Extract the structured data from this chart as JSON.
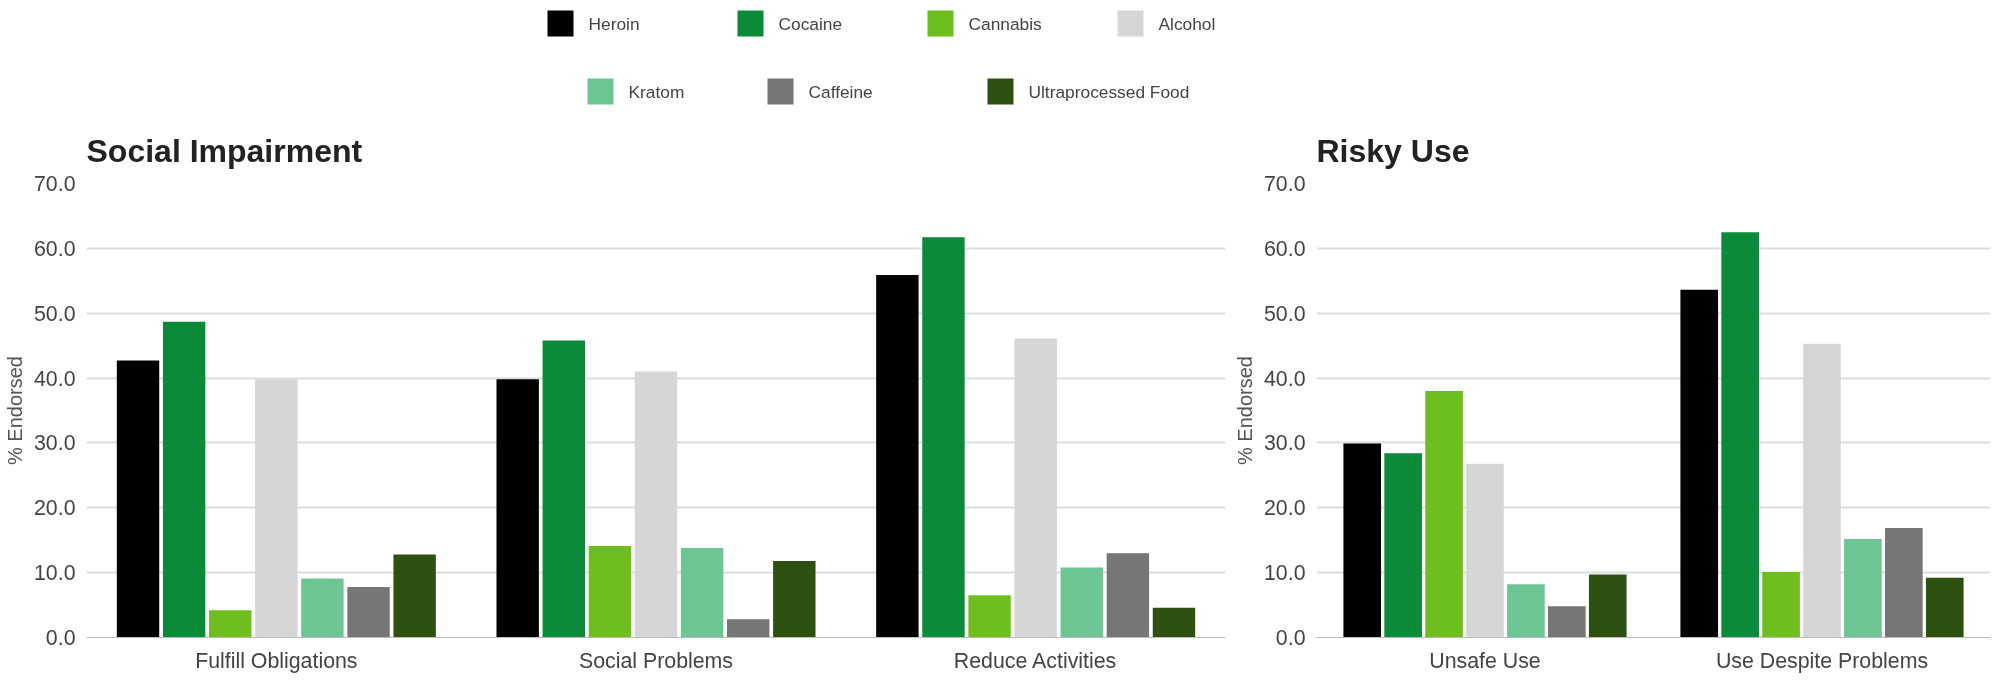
{
  "chart_data": [
    {
      "type": "bar",
      "title": "Social Impairment",
      "ylabel": "% Endorsed",
      "categories": [
        "Fulfill Obligations",
        "Social Problems",
        "Reduce Activities"
      ],
      "series": [
        {
          "name": "Heroin",
          "color": "#000000",
          "values": [
            42.7,
            39.8,
            55.9
          ]
        },
        {
          "name": "Cocaine",
          "color": "#0b8a3a",
          "values": [
            48.7,
            45.8,
            61.7
          ]
        },
        {
          "name": "Cannabis",
          "color": "#6fbe1f",
          "values": [
            4.2,
            14.1,
            6.5
          ]
        },
        {
          "name": "Alcohol",
          "color": "#d6d6d6",
          "values": [
            39.8,
            41.0,
            46.1
          ]
        },
        {
          "name": "Kratom",
          "color": "#6cc592",
          "values": [
            9.1,
            13.8,
            10.8
          ]
        },
        {
          "name": "Caffeine",
          "color": "#767676",
          "values": [
            7.8,
            2.8,
            13.0
          ]
        },
        {
          "name": "Ultraprocessed Food",
          "color": "#2e5010",
          "values": [
            12.8,
            11.8,
            4.6
          ]
        }
      ],
      "ylim": [
        0,
        70
      ],
      "yticks": [
        {
          "value": 0,
          "label": "0.0"
        },
        {
          "value": 10,
          "label": "10.0"
        },
        {
          "value": 20,
          "label": "20.0"
        },
        {
          "value": 30,
          "label": "30.0"
        },
        {
          "value": 40,
          "label": "40.0"
        },
        {
          "value": 50,
          "label": "50.0"
        },
        {
          "value": 60,
          "label": "60.0"
        },
        {
          "value": 70,
          "label": "70.0"
        }
      ],
      "grid": "y",
      "legend": "top"
    },
    {
      "type": "bar",
      "title": "Risky Use",
      "ylabel": "% Endorsed",
      "categories": [
        "Unsafe Use",
        "Use Despite Problems"
      ],
      "series": [
        {
          "name": "Heroin",
          "color": "#000000",
          "values": [
            29.9,
            53.6
          ]
        },
        {
          "name": "Cocaine",
          "color": "#0b8a3a",
          "values": [
            28.4,
            62.5
          ]
        },
        {
          "name": "Cannabis",
          "color": "#6fbe1f",
          "values": [
            38.0,
            10.1
          ]
        },
        {
          "name": "Alcohol",
          "color": "#d6d6d6",
          "values": [
            26.8,
            45.3
          ]
        },
        {
          "name": "Kratom",
          "color": "#6cc592",
          "values": [
            8.2,
            15.2
          ]
        },
        {
          "name": "Caffeine",
          "color": "#767676",
          "values": [
            4.8,
            16.9
          ]
        },
        {
          "name": "Ultraprocessed Food",
          "color": "#2e5010",
          "values": [
            9.7,
            9.2
          ]
        }
      ],
      "ylim": [
        0,
        70
      ],
      "yticks": [
        {
          "value": 0,
          "label": "0.0"
        },
        {
          "value": 10,
          "label": "10.0"
        },
        {
          "value": 20,
          "label": "20.0"
        },
        {
          "value": 30,
          "label": "30.0"
        },
        {
          "value": 40,
          "label": "40.0"
        },
        {
          "value": 50,
          "label": "50.0"
        },
        {
          "value": 60,
          "label": "60.0"
        },
        {
          "value": 70,
          "label": "70.0"
        }
      ],
      "grid": "y",
      "legend": "top"
    }
  ]
}
